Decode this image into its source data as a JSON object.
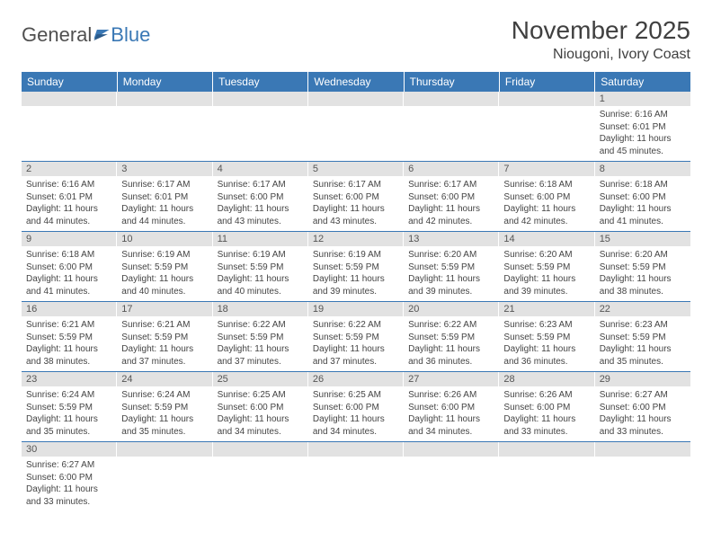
{
  "logo": {
    "text_general": "General",
    "text_blue": "Blue"
  },
  "title": "November 2025",
  "location": "Niougoni, Ivory Coast",
  "colors": {
    "header_bg": "#3a78b5",
    "header_text": "#ffffff",
    "daynum_bg": "#e2e2e2",
    "cell_border": "#3a78b5",
    "body_text": "#444444"
  },
  "weekdays": [
    "Sunday",
    "Monday",
    "Tuesday",
    "Wednesday",
    "Thursday",
    "Friday",
    "Saturday"
  ],
  "weeks": [
    [
      null,
      null,
      null,
      null,
      null,
      null,
      {
        "n": "1",
        "sr": "Sunrise: 6:16 AM",
        "ss": "Sunset: 6:01 PM",
        "dl": "Daylight: 11 hours and 45 minutes."
      }
    ],
    [
      {
        "n": "2",
        "sr": "Sunrise: 6:16 AM",
        "ss": "Sunset: 6:01 PM",
        "dl": "Daylight: 11 hours and 44 minutes."
      },
      {
        "n": "3",
        "sr": "Sunrise: 6:17 AM",
        "ss": "Sunset: 6:01 PM",
        "dl": "Daylight: 11 hours and 44 minutes."
      },
      {
        "n": "4",
        "sr": "Sunrise: 6:17 AM",
        "ss": "Sunset: 6:00 PM",
        "dl": "Daylight: 11 hours and 43 minutes."
      },
      {
        "n": "5",
        "sr": "Sunrise: 6:17 AM",
        "ss": "Sunset: 6:00 PM",
        "dl": "Daylight: 11 hours and 43 minutes."
      },
      {
        "n": "6",
        "sr": "Sunrise: 6:17 AM",
        "ss": "Sunset: 6:00 PM",
        "dl": "Daylight: 11 hours and 42 minutes."
      },
      {
        "n": "7",
        "sr": "Sunrise: 6:18 AM",
        "ss": "Sunset: 6:00 PM",
        "dl": "Daylight: 11 hours and 42 minutes."
      },
      {
        "n": "8",
        "sr": "Sunrise: 6:18 AM",
        "ss": "Sunset: 6:00 PM",
        "dl": "Daylight: 11 hours and 41 minutes."
      }
    ],
    [
      {
        "n": "9",
        "sr": "Sunrise: 6:18 AM",
        "ss": "Sunset: 6:00 PM",
        "dl": "Daylight: 11 hours and 41 minutes."
      },
      {
        "n": "10",
        "sr": "Sunrise: 6:19 AM",
        "ss": "Sunset: 5:59 PM",
        "dl": "Daylight: 11 hours and 40 minutes."
      },
      {
        "n": "11",
        "sr": "Sunrise: 6:19 AM",
        "ss": "Sunset: 5:59 PM",
        "dl": "Daylight: 11 hours and 40 minutes."
      },
      {
        "n": "12",
        "sr": "Sunrise: 6:19 AM",
        "ss": "Sunset: 5:59 PM",
        "dl": "Daylight: 11 hours and 39 minutes."
      },
      {
        "n": "13",
        "sr": "Sunrise: 6:20 AM",
        "ss": "Sunset: 5:59 PM",
        "dl": "Daylight: 11 hours and 39 minutes."
      },
      {
        "n": "14",
        "sr": "Sunrise: 6:20 AM",
        "ss": "Sunset: 5:59 PM",
        "dl": "Daylight: 11 hours and 39 minutes."
      },
      {
        "n": "15",
        "sr": "Sunrise: 6:20 AM",
        "ss": "Sunset: 5:59 PM",
        "dl": "Daylight: 11 hours and 38 minutes."
      }
    ],
    [
      {
        "n": "16",
        "sr": "Sunrise: 6:21 AM",
        "ss": "Sunset: 5:59 PM",
        "dl": "Daylight: 11 hours and 38 minutes."
      },
      {
        "n": "17",
        "sr": "Sunrise: 6:21 AM",
        "ss": "Sunset: 5:59 PM",
        "dl": "Daylight: 11 hours and 37 minutes."
      },
      {
        "n": "18",
        "sr": "Sunrise: 6:22 AM",
        "ss": "Sunset: 5:59 PM",
        "dl": "Daylight: 11 hours and 37 minutes."
      },
      {
        "n": "19",
        "sr": "Sunrise: 6:22 AM",
        "ss": "Sunset: 5:59 PM",
        "dl": "Daylight: 11 hours and 37 minutes."
      },
      {
        "n": "20",
        "sr": "Sunrise: 6:22 AM",
        "ss": "Sunset: 5:59 PM",
        "dl": "Daylight: 11 hours and 36 minutes."
      },
      {
        "n": "21",
        "sr": "Sunrise: 6:23 AM",
        "ss": "Sunset: 5:59 PM",
        "dl": "Daylight: 11 hours and 36 minutes."
      },
      {
        "n": "22",
        "sr": "Sunrise: 6:23 AM",
        "ss": "Sunset: 5:59 PM",
        "dl": "Daylight: 11 hours and 35 minutes."
      }
    ],
    [
      {
        "n": "23",
        "sr": "Sunrise: 6:24 AM",
        "ss": "Sunset: 5:59 PM",
        "dl": "Daylight: 11 hours and 35 minutes."
      },
      {
        "n": "24",
        "sr": "Sunrise: 6:24 AM",
        "ss": "Sunset: 5:59 PM",
        "dl": "Daylight: 11 hours and 35 minutes."
      },
      {
        "n": "25",
        "sr": "Sunrise: 6:25 AM",
        "ss": "Sunset: 6:00 PM",
        "dl": "Daylight: 11 hours and 34 minutes."
      },
      {
        "n": "26",
        "sr": "Sunrise: 6:25 AM",
        "ss": "Sunset: 6:00 PM",
        "dl": "Daylight: 11 hours and 34 minutes."
      },
      {
        "n": "27",
        "sr": "Sunrise: 6:26 AM",
        "ss": "Sunset: 6:00 PM",
        "dl": "Daylight: 11 hours and 34 minutes."
      },
      {
        "n": "28",
        "sr": "Sunrise: 6:26 AM",
        "ss": "Sunset: 6:00 PM",
        "dl": "Daylight: 11 hours and 33 minutes."
      },
      {
        "n": "29",
        "sr": "Sunrise: 6:27 AM",
        "ss": "Sunset: 6:00 PM",
        "dl": "Daylight: 11 hours and 33 minutes."
      }
    ],
    [
      {
        "n": "30",
        "sr": "Sunrise: 6:27 AM",
        "ss": "Sunset: 6:00 PM",
        "dl": "Daylight: 11 hours and 33 minutes."
      },
      null,
      null,
      null,
      null,
      null,
      null
    ]
  ]
}
